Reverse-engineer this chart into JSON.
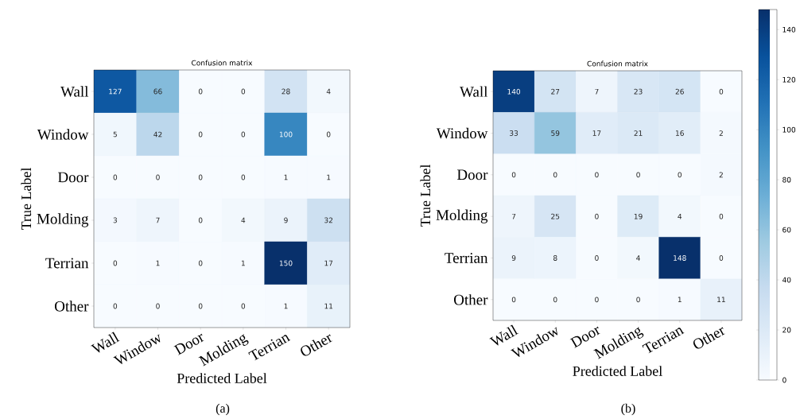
{
  "chart_data": [
    {
      "type": "heatmap",
      "title": "Confusion matrix",
      "xlabel": "Predicted Label",
      "ylabel": "True Label",
      "categories": [
        "Wall",
        "Window",
        "Door",
        "Molding",
        "Terrian",
        "Other"
      ],
      "y_categories": [
        "Wall",
        "Window",
        "Door",
        "Molding",
        "Terrian",
        "Other"
      ],
      "cells": [
        [
          127,
          66,
          0,
          0,
          28,
          4
        ],
        [
          5,
          42,
          0,
          0,
          100,
          0
        ],
        [
          0,
          0,
          0,
          0,
          1,
          1
        ],
        [
          3,
          7,
          0,
          4,
          9,
          32
        ],
        [
          0,
          1,
          0,
          1,
          150,
          17
        ],
        [
          0,
          0,
          0,
          0,
          1,
          11
        ]
      ],
      "data_labels": true,
      "annotations": [
        "(a)"
      ]
    },
    {
      "type": "heatmap",
      "title": "Confusion matrix",
      "xlabel": "Predicted Label",
      "ylabel": "True Label",
      "categories": [
        "Wall",
        "Window",
        "Door",
        "Molding",
        "Terrian",
        "Other"
      ],
      "y_categories": [
        "Wall",
        "Window",
        "Door",
        "Molding",
        "Terrian",
        "Other"
      ],
      "cells": [
        [
          140,
          27,
          7,
          23,
          26,
          0
        ],
        [
          33,
          59,
          17,
          21,
          16,
          2
        ],
        [
          0,
          0,
          0,
          0,
          0,
          2
        ],
        [
          7,
          25,
          0,
          19,
          4,
          0
        ],
        [
          9,
          8,
          0,
          4,
          148,
          0
        ],
        [
          0,
          0,
          0,
          0,
          1,
          11
        ]
      ],
      "data_labels": true,
      "clim": [
        0,
        148
      ],
      "cticks": [
        0,
        20,
        40,
        60,
        80,
        100,
        120,
        140
      ],
      "annotations": [
        "(b)"
      ]
    }
  ]
}
